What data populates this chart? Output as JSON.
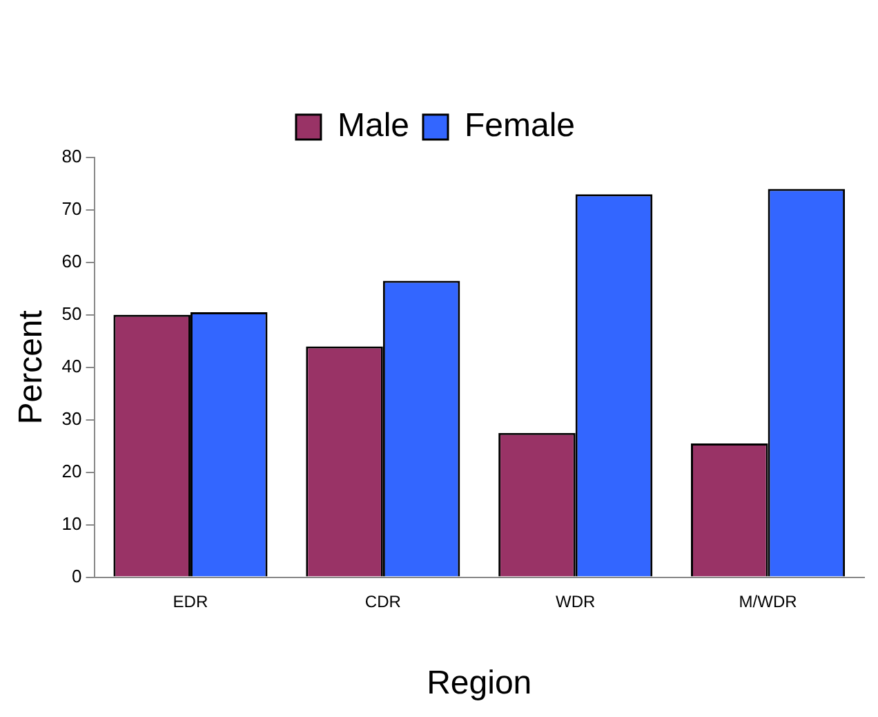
{
  "chart_data": {
    "type": "bar",
    "categories": [
      "EDR",
      "CDR",
      "WDR",
      "M/WDR"
    ],
    "series": [
      {
        "name": "Male",
        "color": "#993366",
        "values": [
          50,
          44,
          27.5,
          25.5
        ]
      },
      {
        "name": "Female",
        "color": "#3366ff",
        "values": [
          50.5,
          56.5,
          73,
          74
        ]
      }
    ],
    "xlabel": "Region",
    "ylabel": "Percent",
    "ylim": [
      0,
      80
    ],
    "yticks": [
      0,
      10,
      20,
      30,
      40,
      50,
      60,
      70,
      80
    ],
    "grid": false,
    "legend": "top"
  }
}
